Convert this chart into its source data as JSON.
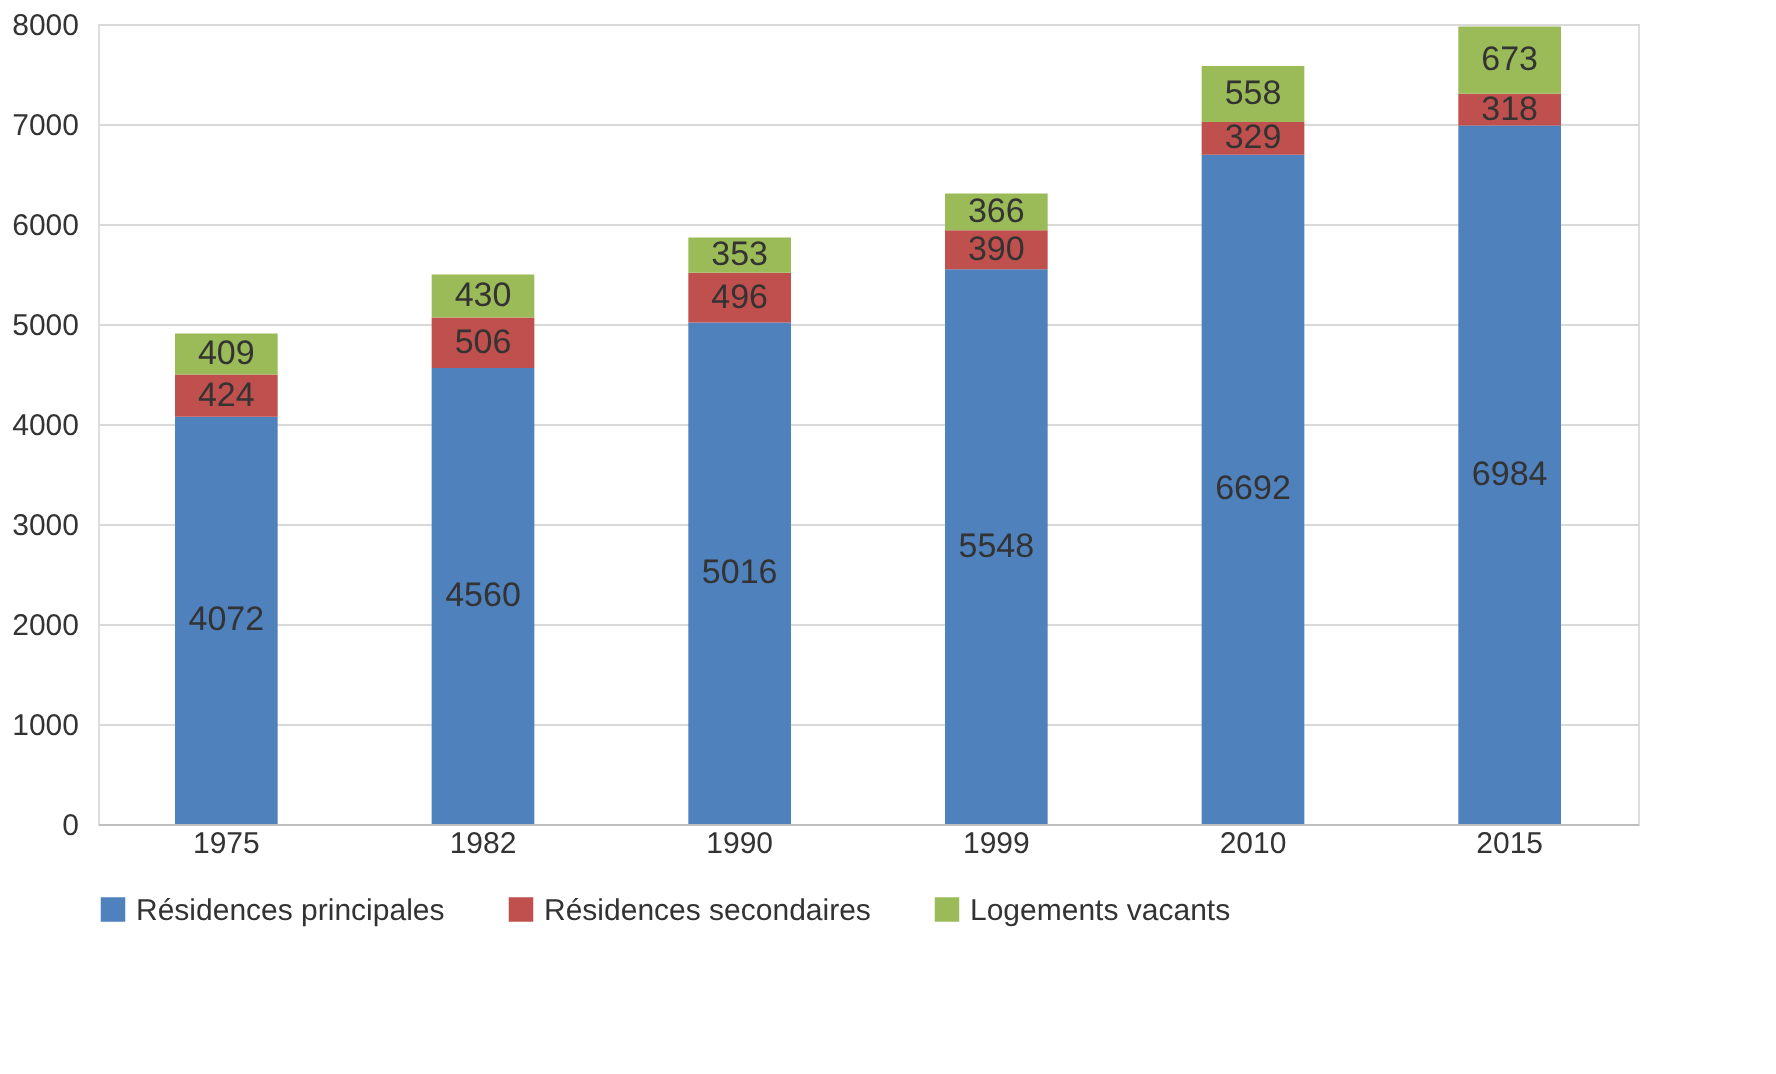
{
  "chart_data": {
    "type": "bar",
    "stacked": true,
    "categories": [
      "1975",
      "1982",
      "1990",
      "1999",
      "2010",
      "2015"
    ],
    "series": [
      {
        "name": "Résidences principales",
        "color": "#4f81bd",
        "values": [
          4072,
          4560,
          5016,
          5548,
          6692,
          6984
        ]
      },
      {
        "name": "Résidences secondaires",
        "color": "#c0504d",
        "values": [
          424,
          506,
          496,
          390,
          329,
          318
        ]
      },
      {
        "name": "Logements vacants",
        "color": "#9bbb59",
        "values": [
          409,
          430,
          353,
          366,
          558,
          673
        ]
      }
    ],
    "ylim": [
      0,
      8000
    ],
    "yticks": [
      0,
      1000,
      2000,
      3000,
      4000,
      5000,
      6000,
      7000,
      8000
    ],
    "grid": "y",
    "legend": "bottom",
    "data_labels": true
  }
}
